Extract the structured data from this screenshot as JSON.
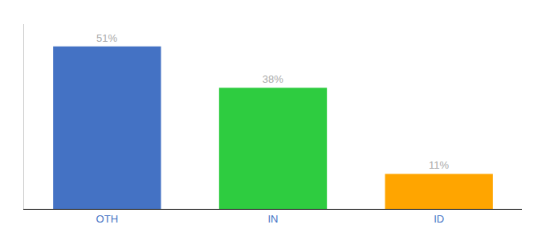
{
  "chart_data": {
    "type": "bar",
    "categories": [
      "OTH",
      "IN",
      "ID"
    ],
    "values": [
      51,
      38,
      11
    ],
    "value_labels": [
      "51%",
      "38%",
      "11%"
    ],
    "colors": [
      "#4472C4",
      "#2ECC40",
      "#FFA500"
    ],
    "ylim": [
      0,
      58
    ],
    "data_labels": true,
    "tick_labels": "x",
    "grid": false
  }
}
